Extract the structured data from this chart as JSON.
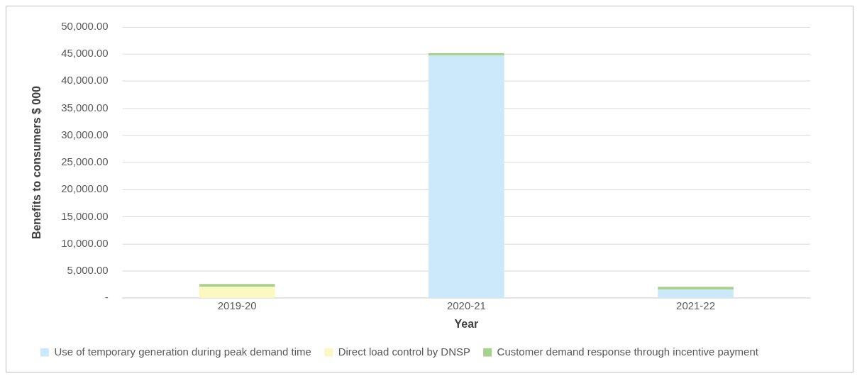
{
  "chart_data": {
    "type": "bar",
    "stacked": true,
    "xlabel": "Year",
    "ylabel": "Benefits to consumers $ 000",
    "categories": [
      "2019-20",
      "2020-21",
      "2021-22"
    ],
    "series": [
      {
        "name": "Use of temporary generation during peak demand time",
        "color": "#cce9fb",
        "values": [
          0,
          44700,
          1550
        ]
      },
      {
        "name": "Direct load control by DNSP",
        "color": "#fbf8c0",
        "values": [
          2100,
          0,
          0
        ]
      },
      {
        "name": "Customer demand response through incentive payment",
        "color": "#a9d18e",
        "values": [
          500,
          450,
          550
        ]
      }
    ],
    "ylim": [
      0,
      50000
    ],
    "yticks": [
      {
        "value": 0,
        "label": "-"
      },
      {
        "value": 5000,
        "label": "5,000.00"
      },
      {
        "value": 10000,
        "label": "10,000.00"
      },
      {
        "value": 15000,
        "label": "15,000.00"
      },
      {
        "value": 20000,
        "label": "20,000.00"
      },
      {
        "value": 25000,
        "label": "25,000.00"
      },
      {
        "value": 30000,
        "label": "30,000.00"
      },
      {
        "value": 35000,
        "label": "35,000.00"
      },
      {
        "value": 40000,
        "label": "40,000.00"
      },
      {
        "value": 45000,
        "label": "45,000.00"
      },
      {
        "value": 50000,
        "label": "50,000.00"
      }
    ],
    "grid": "y",
    "legend": "bottom"
  }
}
